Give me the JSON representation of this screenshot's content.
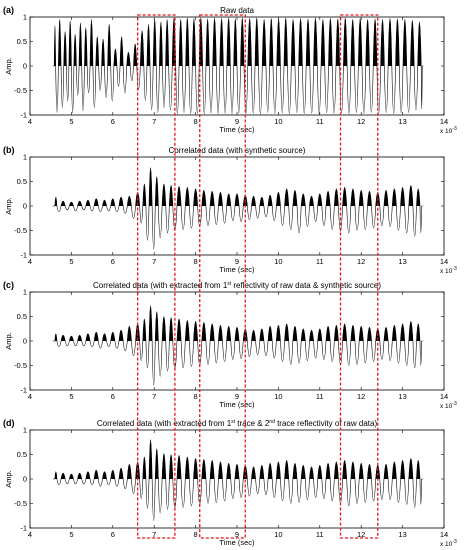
{
  "figure": {
    "exponent_label": "x 10",
    "exponent_power": "-3",
    "highlight_color": "#e8141b",
    "trace_color": "#000000"
  },
  "chart_data": [
    {
      "type": "line",
      "panel_letter": "(a)",
      "title_parts": [
        {
          "text": "Raw data"
        }
      ],
      "xlabel": "Time (sec)",
      "ylabel": "Amp.",
      "xlim": [
        4,
        14
      ],
      "ylim": [
        -1,
        1
      ],
      "x_ticks": [
        "4",
        "5",
        "6",
        "7",
        "8",
        "9",
        "10",
        "11",
        "12",
        "13",
        "14"
      ],
      "y_ticks": [
        "1",
        "0.5",
        "0",
        "-0.5",
        "-1"
      ],
      "x_units_scale": "x 10^-3",
      "signal": {
        "x_start": 4.55,
        "x_end": 13.5,
        "peaks": [
          [
            4.62,
            0.82,
            -0.95
          ],
          [
            4.75,
            0.95,
            -0.85
          ],
          [
            4.88,
            0.7,
            -0.72
          ],
          [
            5.0,
            0.92,
            -0.96
          ],
          [
            5.12,
            0.65,
            -0.6
          ],
          [
            5.25,
            0.88,
            -0.92
          ],
          [
            5.38,
            0.78,
            -0.55
          ],
          [
            5.52,
            0.95,
            -0.85
          ],
          [
            5.66,
            0.6,
            -0.5
          ],
          [
            5.8,
            0.55,
            -0.65
          ],
          [
            5.95,
            0.85,
            -0.72
          ],
          [
            6.1,
            0.35,
            -0.42
          ],
          [
            6.25,
            0.6,
            -0.55
          ],
          [
            6.42,
            0.28,
            -0.3
          ],
          [
            6.58,
            0.45,
            -0.48
          ],
          [
            6.75,
            0.72,
            -0.7
          ],
          [
            6.9,
            0.85,
            -0.9
          ],
          [
            7.05,
            0.95,
            -0.95
          ],
          [
            7.2,
            0.9,
            -0.85
          ],
          [
            7.35,
            0.95,
            -0.9
          ],
          [
            7.52,
            0.98,
            -0.98
          ],
          [
            7.68,
            0.95,
            -0.95
          ],
          [
            7.84,
            0.98,
            -0.98
          ],
          [
            8.0,
            0.97,
            -0.97
          ],
          [
            8.17,
            0.98,
            -0.98
          ],
          [
            8.33,
            0.96,
            -0.96
          ],
          [
            8.5,
            0.98,
            -0.98
          ],
          [
            8.67,
            0.97,
            -0.97
          ],
          [
            8.84,
            0.98,
            -0.98
          ],
          [
            9.0,
            0.96,
            -0.96
          ],
          [
            9.17,
            0.98,
            -0.98
          ],
          [
            9.35,
            0.97,
            -0.97
          ],
          [
            9.52,
            0.98,
            -0.98
          ],
          [
            9.7,
            0.95,
            -0.95
          ],
          [
            9.87,
            0.97,
            -0.97
          ],
          [
            10.05,
            0.96,
            -0.96
          ],
          [
            10.22,
            0.98,
            -0.98
          ],
          [
            10.4,
            0.95,
            -0.95
          ],
          [
            10.58,
            0.97,
            -0.97
          ],
          [
            10.76,
            0.96,
            -0.96
          ],
          [
            10.94,
            0.98,
            -0.98
          ],
          [
            11.12,
            0.95,
            -0.95
          ],
          [
            11.3,
            0.97,
            -0.97
          ],
          [
            11.48,
            0.96,
            -0.96
          ],
          [
            11.66,
            0.98,
            -0.98
          ],
          [
            11.84,
            0.95,
            -0.95
          ],
          [
            12.02,
            0.97,
            -0.97
          ],
          [
            12.2,
            0.95,
            -0.95
          ],
          [
            12.38,
            0.96,
            -0.96
          ],
          [
            12.56,
            0.95,
            -0.95
          ],
          [
            12.74,
            0.97,
            -0.97
          ],
          [
            12.92,
            0.96,
            -0.96
          ],
          [
            13.1,
            0.95,
            -0.95
          ],
          [
            13.28,
            0.93,
            -0.9
          ],
          [
            13.45,
            0.9,
            -0.88
          ]
        ]
      }
    },
    {
      "type": "line",
      "panel_letter": "(b)",
      "title_parts": [
        {
          "text": "Correlated data (with synthetic source)"
        }
      ],
      "xlabel": "Time (sec)",
      "ylabel": "Amp.",
      "xlim": [
        4,
        14
      ],
      "ylim": [
        -1,
        1
      ],
      "x_ticks": [
        "4",
        "5",
        "6",
        "7",
        "8",
        "9",
        "10",
        "11",
        "12",
        "13",
        "14"
      ],
      "y_ticks": [
        "1",
        "0.5",
        "0",
        "-0.5",
        "-1"
      ],
      "x_units_scale": "x 10^-3",
      "signal": {
        "x_start": 4.55,
        "x_end": 13.5,
        "peaks": [
          [
            4.65,
            0.18,
            -0.12
          ],
          [
            4.85,
            0.1,
            -0.08
          ],
          [
            5.05,
            0.08,
            -0.1
          ],
          [
            5.25,
            0.1,
            -0.08
          ],
          [
            5.45,
            0.12,
            -0.1
          ],
          [
            5.65,
            0.15,
            -0.12
          ],
          [
            5.85,
            0.12,
            -0.1
          ],
          [
            6.05,
            0.15,
            -0.12
          ],
          [
            6.25,
            0.18,
            -0.15
          ],
          [
            6.45,
            0.2,
            -0.25
          ],
          [
            6.65,
            0.28,
            -0.35
          ],
          [
            6.8,
            0.45,
            -0.7
          ],
          [
            6.95,
            0.78,
            -0.88
          ],
          [
            7.1,
            0.6,
            -0.65
          ],
          [
            7.28,
            0.45,
            -0.55
          ],
          [
            7.45,
            0.42,
            -0.5
          ],
          [
            7.65,
            0.4,
            -0.48
          ],
          [
            7.85,
            0.38,
            -0.45
          ],
          [
            8.05,
            0.35,
            -0.42
          ],
          [
            8.25,
            0.32,
            -0.4
          ],
          [
            8.45,
            0.3,
            -0.38
          ],
          [
            8.65,
            0.28,
            -0.35
          ],
          [
            8.85,
            0.25,
            -0.3
          ],
          [
            9.05,
            0.25,
            -0.32
          ],
          [
            9.25,
            0.22,
            -0.28
          ],
          [
            9.45,
            0.2,
            -0.25
          ],
          [
            9.65,
            0.18,
            -0.22
          ],
          [
            9.85,
            0.22,
            -0.3
          ],
          [
            10.05,
            0.28,
            -0.4
          ],
          [
            10.25,
            0.35,
            -0.48
          ],
          [
            10.45,
            0.32,
            -0.55
          ],
          [
            10.65,
            0.25,
            -0.42
          ],
          [
            10.85,
            0.2,
            -0.32
          ],
          [
            11.05,
            0.25,
            -0.4
          ],
          [
            11.25,
            0.3,
            -0.48
          ],
          [
            11.45,
            0.35,
            -0.52
          ],
          [
            11.65,
            0.38,
            -0.55
          ],
          [
            11.85,
            0.35,
            -0.5
          ],
          [
            12.05,
            0.32,
            -0.48
          ],
          [
            12.25,
            0.3,
            -0.45
          ],
          [
            12.45,
            0.28,
            -0.4
          ],
          [
            12.65,
            0.32,
            -0.42
          ],
          [
            12.85,
            0.35,
            -0.5
          ],
          [
            13.05,
            0.38,
            -0.55
          ],
          [
            13.25,
            0.42,
            -0.62
          ],
          [
            13.42,
            0.35,
            -0.55
          ]
        ]
      }
    },
    {
      "type": "line",
      "panel_letter": "(c)",
      "title_parts": [
        {
          "text": "Correlated data (with extracted from 1"
        },
        {
          "text": "st",
          "sup": true
        },
        {
          "text": " reflectivity of raw data & synthetic source)"
        }
      ],
      "xlabel": "Time (sec)",
      "ylabel": "Amp.",
      "xlim": [
        4,
        14
      ],
      "ylim": [
        -1,
        1
      ],
      "x_ticks": [
        "4",
        "5",
        "6",
        "7",
        "8",
        "9",
        "10",
        "11",
        "12",
        "13",
        "14"
      ],
      "y_ticks": [
        "1",
        "0.5",
        "0",
        "-0.5",
        "-1"
      ],
      "x_units_scale": "x 10^-3",
      "signal": {
        "x_start": 4.55,
        "x_end": 13.5,
        "peaks": [
          [
            4.65,
            0.15,
            -0.12
          ],
          [
            4.85,
            0.12,
            -0.1
          ],
          [
            5.05,
            0.1,
            -0.1
          ],
          [
            5.25,
            0.12,
            -0.1
          ],
          [
            5.45,
            0.15,
            -0.12
          ],
          [
            5.65,
            0.18,
            -0.15
          ],
          [
            5.85,
            0.15,
            -0.12
          ],
          [
            6.05,
            0.18,
            -0.15
          ],
          [
            6.25,
            0.22,
            -0.2
          ],
          [
            6.45,
            0.3,
            -0.3
          ],
          [
            6.65,
            0.35,
            -0.4
          ],
          [
            6.8,
            0.45,
            -0.55
          ],
          [
            6.95,
            0.72,
            -0.9
          ],
          [
            7.1,
            0.6,
            -0.72
          ],
          [
            7.28,
            0.5,
            -0.62
          ],
          [
            7.45,
            0.48,
            -0.58
          ],
          [
            7.65,
            0.45,
            -0.55
          ],
          [
            7.85,
            0.42,
            -0.52
          ],
          [
            8.05,
            0.4,
            -0.5
          ],
          [
            8.25,
            0.38,
            -0.48
          ],
          [
            8.45,
            0.35,
            -0.45
          ],
          [
            8.65,
            0.32,
            -0.42
          ],
          [
            8.85,
            0.3,
            -0.38
          ],
          [
            9.05,
            0.28,
            -0.36
          ],
          [
            9.25,
            0.25,
            -0.32
          ],
          [
            9.45,
            0.22,
            -0.28
          ],
          [
            9.65,
            0.25,
            -0.3
          ],
          [
            9.85,
            0.3,
            -0.35
          ],
          [
            10.05,
            0.32,
            -0.42
          ],
          [
            10.25,
            0.35,
            -0.48
          ],
          [
            10.45,
            0.3,
            -0.45
          ],
          [
            10.65,
            0.25,
            -0.4
          ],
          [
            10.85,
            0.22,
            -0.35
          ],
          [
            11.05,
            0.25,
            -0.38
          ],
          [
            11.25,
            0.3,
            -0.42
          ],
          [
            11.45,
            0.32,
            -0.48
          ],
          [
            11.65,
            0.35,
            -0.5
          ],
          [
            11.85,
            0.32,
            -0.48
          ],
          [
            12.05,
            0.3,
            -0.45
          ],
          [
            12.25,
            0.28,
            -0.42
          ],
          [
            12.45,
            0.25,
            -0.38
          ],
          [
            12.65,
            0.28,
            -0.4
          ],
          [
            12.85,
            0.32,
            -0.45
          ],
          [
            13.05,
            0.35,
            -0.5
          ],
          [
            13.25,
            0.4,
            -0.55
          ],
          [
            13.42,
            0.35,
            -0.5
          ]
        ]
      }
    },
    {
      "type": "line",
      "panel_letter": "(d)",
      "title_parts": [
        {
          "text": "Correlated data (with extracted from 1"
        },
        {
          "text": "st",
          "sup": true
        },
        {
          "text": " trace & 2"
        },
        {
          "text": "nd",
          "sup": true
        },
        {
          "text": " trace reflectivity of raw data)"
        }
      ],
      "xlabel": "Time (sec)",
      "ylabel": "Amp.",
      "xlim": [
        4,
        14
      ],
      "ylim": [
        -1,
        1
      ],
      "x_ticks": [
        "4",
        "5",
        "6",
        "7",
        "8",
        "9",
        "10",
        "11",
        "12",
        "13",
        "14"
      ],
      "y_ticks": [
        "1",
        "0.5",
        "0",
        "-0.5",
        "-1"
      ],
      "x_units_scale": "x 10^-3",
      "signal": {
        "x_start": 4.55,
        "x_end": 13.5,
        "peaks": [
          [
            4.65,
            0.15,
            -0.12
          ],
          [
            4.85,
            0.12,
            -0.1
          ],
          [
            5.05,
            0.1,
            -0.1
          ],
          [
            5.25,
            0.12,
            -0.1
          ],
          [
            5.45,
            0.15,
            -0.12
          ],
          [
            5.65,
            0.18,
            -0.15
          ],
          [
            5.85,
            0.15,
            -0.12
          ],
          [
            6.05,
            0.18,
            -0.15
          ],
          [
            6.25,
            0.22,
            -0.2
          ],
          [
            6.45,
            0.3,
            -0.3
          ],
          [
            6.65,
            0.35,
            -0.4
          ],
          [
            6.8,
            0.45,
            -0.6
          ],
          [
            6.95,
            0.8,
            -0.85
          ],
          [
            7.1,
            0.62,
            -0.7
          ],
          [
            7.28,
            0.52,
            -0.62
          ],
          [
            7.45,
            0.5,
            -0.6
          ],
          [
            7.65,
            0.48,
            -0.58
          ],
          [
            7.85,
            0.45,
            -0.55
          ],
          [
            8.05,
            0.42,
            -0.52
          ],
          [
            8.25,
            0.4,
            -0.5
          ],
          [
            8.45,
            0.38,
            -0.48
          ],
          [
            8.65,
            0.35,
            -0.45
          ],
          [
            8.85,
            0.32,
            -0.4
          ],
          [
            9.05,
            0.3,
            -0.38
          ],
          [
            9.25,
            0.28,
            -0.35
          ],
          [
            9.45,
            0.25,
            -0.3
          ],
          [
            9.65,
            0.28,
            -0.32
          ],
          [
            9.85,
            0.32,
            -0.38
          ],
          [
            10.05,
            0.35,
            -0.45
          ],
          [
            10.25,
            0.38,
            -0.5
          ],
          [
            10.45,
            0.32,
            -0.48
          ],
          [
            10.65,
            0.28,
            -0.42
          ],
          [
            10.85,
            0.25,
            -0.38
          ],
          [
            11.05,
            0.28,
            -0.4
          ],
          [
            11.25,
            0.32,
            -0.45
          ],
          [
            11.45,
            0.35,
            -0.5
          ],
          [
            11.65,
            0.38,
            -0.55
          ],
          [
            11.85,
            0.35,
            -0.5
          ],
          [
            12.05,
            0.32,
            -0.48
          ],
          [
            12.25,
            0.3,
            -0.45
          ],
          [
            12.45,
            0.28,
            -0.42
          ],
          [
            12.65,
            0.3,
            -0.42
          ],
          [
            12.85,
            0.35,
            -0.48
          ],
          [
            13.05,
            0.38,
            -0.52
          ],
          [
            13.25,
            0.42,
            -0.58
          ],
          [
            13.42,
            0.38,
            -0.52
          ]
        ]
      }
    }
  ],
  "highlight_windows": [
    {
      "x_start": 6.6,
      "x_end": 7.5
    },
    {
      "x_start": 8.1,
      "x_end": 9.2
    },
    {
      "x_start": 11.5,
      "x_end": 12.4
    }
  ]
}
